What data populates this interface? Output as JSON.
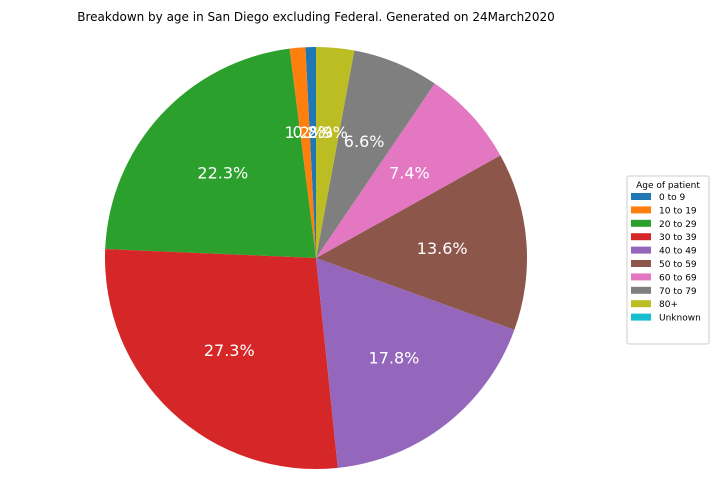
{
  "chart_data": {
    "type": "pie",
    "title": "Breakdown by age in San Diego excluding Federal. Generated on 24March2020",
    "legend_title": "Age of patient",
    "legend_position": "right",
    "start_angle_deg": 90,
    "direction": "counterclockwise",
    "slices": [
      {
        "label": "0 to 9",
        "value": 0.8,
        "pct_label": "0.8%",
        "color": "#1f77b4"
      },
      {
        "label": "10 to 19",
        "value": 1.2,
        "pct_label": "1.2%",
        "color": "#ff7f0e"
      },
      {
        "label": "20 to 29",
        "value": 22.3,
        "pct_label": "22.3%",
        "color": "#2ca02c"
      },
      {
        "label": "30 to 39",
        "value": 27.3,
        "pct_label": "27.3%",
        "color": "#d62728"
      },
      {
        "label": "40 to 49",
        "value": 17.8,
        "pct_label": "17.8%",
        "color": "#9467bd"
      },
      {
        "label": "50 to 59",
        "value": 13.6,
        "pct_label": "13.6%",
        "color": "#8c564b"
      },
      {
        "label": "60 to 69",
        "value": 7.4,
        "pct_label": "7.4%",
        "color": "#e377c2"
      },
      {
        "label": "70 to 79",
        "value": 6.6,
        "pct_label": "6.6%",
        "color": "#7f7f7f"
      },
      {
        "label": "80+",
        "value": 2.9,
        "pct_label": "2.9%",
        "color": "#bcbd22"
      },
      {
        "label": "Unknown",
        "value": 0.0,
        "pct_label": "0.0%",
        "color": "#17becf"
      }
    ]
  }
}
